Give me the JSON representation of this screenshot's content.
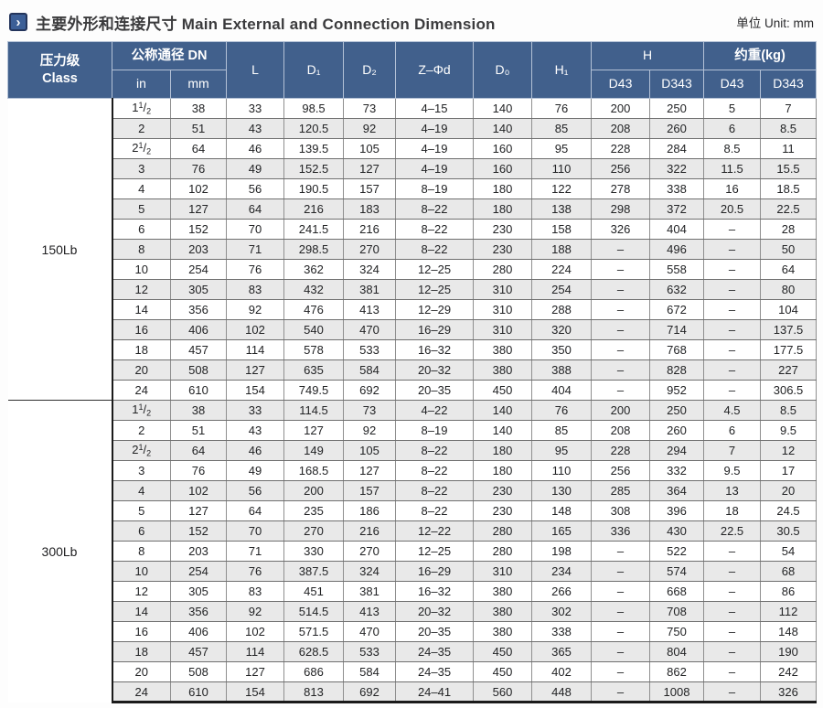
{
  "title": "主要外形和连接尺寸 Main External and Connection Dimension",
  "unit_label": "单位 Unit: mm",
  "title_icon": "›",
  "colors": {
    "header_bg": "#41608c",
    "stripe": "#e9e9e9",
    "icon_bg": "#3c5f97",
    "icon_border": "#24355c",
    "heavy_line": "#1a1a1a"
  },
  "table": {
    "headers": {
      "class_zh": "压力级",
      "class_en": "Class",
      "dn": "公称通径 DN",
      "in": "in",
      "mm": "mm",
      "L": "L",
      "d1": "D₁",
      "d2": "D₂",
      "zd": "Z–Φd",
      "d0": "D₀",
      "h1": "H₁",
      "h": "H",
      "weight": "约重(kg)",
      "h_d43": "D43",
      "h_d343": "D343",
      "w_d43": "D43",
      "w_d343": "D343"
    },
    "columns": [
      "in",
      "mm",
      "L",
      "D1",
      "D2",
      "Z-Phi-d",
      "D0",
      "H1",
      "H D43",
      "H D343",
      "weight D43",
      "weight D343"
    ],
    "sections": [
      {
        "class_label": "150Lb",
        "rows": [
          [
            "1 1/2",
            "38",
            "33",
            "98.5",
            "73",
            "4–15",
            "140",
            "76",
            "200",
            "250",
            "5",
            "7"
          ],
          [
            "2",
            "51",
            "43",
            "120.5",
            "92",
            "4–19",
            "140",
            "85",
            "208",
            "260",
            "6",
            "8.5"
          ],
          [
            "2 1/2",
            "64",
            "46",
            "139.5",
            "105",
            "4–19",
            "160",
            "95",
            "228",
            "284",
            "8.5",
            "11"
          ],
          [
            "3",
            "76",
            "49",
            "152.5",
            "127",
            "4–19",
            "160",
            "110",
            "256",
            "322",
            "11.5",
            "15.5"
          ],
          [
            "4",
            "102",
            "56",
            "190.5",
            "157",
            "8–19",
            "180",
            "122",
            "278",
            "338",
            "16",
            "18.5"
          ],
          [
            "5",
            "127",
            "64",
            "216",
            "183",
            "8–22",
            "180",
            "138",
            "298",
            "372",
            "20.5",
            "22.5"
          ],
          [
            "6",
            "152",
            "70",
            "241.5",
            "216",
            "8–22",
            "230",
            "158",
            "326",
            "404",
            "–",
            "28"
          ],
          [
            "8",
            "203",
            "71",
            "298.5",
            "270",
            "8–22",
            "230",
            "188",
            "–",
            "496",
            "–",
            "50"
          ],
          [
            "10",
            "254",
            "76",
            "362",
            "324",
            "12–25",
            "280",
            "224",
            "–",
            "558",
            "–",
            "64"
          ],
          [
            "12",
            "305",
            "83",
            "432",
            "381",
            "12–25",
            "310",
            "254",
            "–",
            "632",
            "–",
            "80"
          ],
          [
            "14",
            "356",
            "92",
            "476",
            "413",
            "12–29",
            "310",
            "288",
            "–",
            "672",
            "–",
            "104"
          ],
          [
            "16",
            "406",
            "102",
            "540",
            "470",
            "16–29",
            "310",
            "320",
            "–",
            "714",
            "–",
            "137.5"
          ],
          [
            "18",
            "457",
            "114",
            "578",
            "533",
            "16–32",
            "380",
            "350",
            "–",
            "768",
            "–",
            "177.5"
          ],
          [
            "20",
            "508",
            "127",
            "635",
            "584",
            "20–32",
            "380",
            "388",
            "–",
            "828",
            "–",
            "227"
          ],
          [
            "24",
            "610",
            "154",
            "749.5",
            "692",
            "20–35",
            "450",
            "404",
            "–",
            "952",
            "–",
            "306.5"
          ]
        ]
      },
      {
        "class_label": "300Lb",
        "rows": [
          [
            "1 1/2",
            "38",
            "33",
            "114.5",
            "73",
            "4–22",
            "140",
            "76",
            "200",
            "250",
            "4.5",
            "8.5"
          ],
          [
            "2",
            "51",
            "43",
            "127",
            "92",
            "8–19",
            "140",
            "85",
            "208",
            "260",
            "6",
            "9.5"
          ],
          [
            "2 1/2",
            "64",
            "46",
            "149",
            "105",
            "8–22",
            "180",
            "95",
            "228",
            "294",
            "7",
            "12"
          ],
          [
            "3",
            "76",
            "49",
            "168.5",
            "127",
            "8–22",
            "180",
            "110",
            "256",
            "332",
            "9.5",
            "17"
          ],
          [
            "4",
            "102",
            "56",
            "200",
            "157",
            "8–22",
            "230",
            "130",
            "285",
            "364",
            "13",
            "20"
          ],
          [
            "5",
            "127",
            "64",
            "235",
            "186",
            "8–22",
            "230",
            "148",
            "308",
            "396",
            "18",
            "24.5"
          ],
          [
            "6",
            "152",
            "70",
            "270",
            "216",
            "12–22",
            "280",
            "165",
            "336",
            "430",
            "22.5",
            "30.5"
          ],
          [
            "8",
            "203",
            "71",
            "330",
            "270",
            "12–25",
            "280",
            "198",
            "–",
            "522",
            "–",
            "54"
          ],
          [
            "10",
            "254",
            "76",
            "387.5",
            "324",
            "16–29",
            "310",
            "234",
            "–",
            "574",
            "–",
            "68"
          ],
          [
            "12",
            "305",
            "83",
            "451",
            "381",
            "16–32",
            "380",
            "266",
            "–",
            "668",
            "–",
            "86"
          ],
          [
            "14",
            "356",
            "92",
            "514.5",
            "413",
            "20–32",
            "380",
            "302",
            "–",
            "708",
            "–",
            "112"
          ],
          [
            "16",
            "406",
            "102",
            "571.5",
            "470",
            "20–35",
            "380",
            "338",
            "–",
            "750",
            "–",
            "148"
          ],
          [
            "18",
            "457",
            "114",
            "628.5",
            "533",
            "24–35",
            "450",
            "365",
            "–",
            "804",
            "–",
            "190"
          ],
          [
            "20",
            "508",
            "127",
            "686",
            "584",
            "24–35",
            "450",
            "402",
            "–",
            "862",
            "–",
            "242"
          ],
          [
            "24",
            "610",
            "154",
            "813",
            "692",
            "24–41",
            "560",
            "448",
            "–",
            "1008",
            "–",
            "326"
          ]
        ]
      }
    ]
  }
}
